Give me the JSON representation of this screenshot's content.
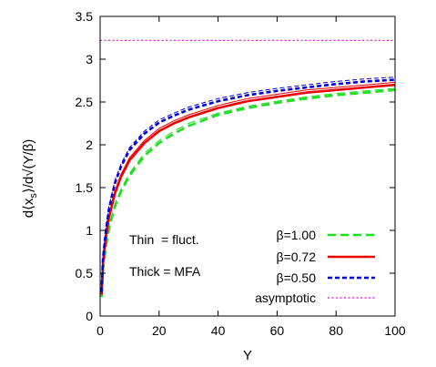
{
  "chart_data": {
    "type": "line",
    "xlabel": "Y",
    "ylabel": "d⟨x_s⟩/d√(Y/β)",
    "xlim": [
      0,
      100
    ],
    "ylim": [
      0,
      3.5
    ],
    "x_ticks": [
      0,
      20,
      40,
      60,
      80,
      100
    ],
    "y_ticks": [
      0,
      0.5,
      1,
      1.5,
      2,
      2.5,
      3,
      3.5
    ],
    "x_tick_labels": [
      "0",
      "20",
      "40",
      "60",
      "80",
      "100"
    ],
    "y_tick_labels": [
      "0",
      "0.5",
      "1",
      "1.5",
      "2",
      "2.5",
      "3",
      "3.5"
    ],
    "grid": false,
    "legend_position": "bottom-right",
    "annotations": [
      "Thin  = fluct.",
      "Thick = MFA"
    ],
    "series": [
      {
        "name": "β=1.00",
        "color": "#22dd22",
        "style": "dashed",
        "thick": {
          "x": [
            0.5,
            1,
            2,
            3,
            5,
            7,
            10,
            15,
            20,
            25,
            30,
            40,
            50,
            60,
            70,
            80,
            90,
            100
          ],
          "y": [
            0.22,
            0.55,
            0.82,
            1.02,
            1.28,
            1.45,
            1.64,
            1.87,
            2.02,
            2.13,
            2.22,
            2.35,
            2.43,
            2.49,
            2.54,
            2.58,
            2.61,
            2.64
          ]
        },
        "thin": {
          "x": [
            0.5,
            1,
            2,
            3,
            5,
            7,
            10,
            15,
            20,
            25,
            30,
            40,
            50,
            60,
            70,
            80,
            90,
            100
          ],
          "y": [
            0.24,
            0.58,
            0.85,
            1.05,
            1.31,
            1.48,
            1.67,
            1.9,
            2.05,
            2.16,
            2.25,
            2.37,
            2.45,
            2.51,
            2.56,
            2.6,
            2.63,
            2.66
          ]
        }
      },
      {
        "name": "β=0.72",
        "color": "#ee0000",
        "style": "solid",
        "thick": {
          "x": [
            0.5,
            1,
            2,
            3,
            5,
            7,
            10,
            15,
            20,
            25,
            30,
            40,
            50,
            60,
            70,
            80,
            90,
            100
          ],
          "y": [
            0.25,
            0.62,
            0.93,
            1.15,
            1.43,
            1.62,
            1.82,
            2.02,
            2.16,
            2.25,
            2.32,
            2.43,
            2.51,
            2.56,
            2.61,
            2.64,
            2.67,
            2.7
          ]
        },
        "thin": {
          "x": [
            0.5,
            1,
            2,
            3,
            5,
            7,
            10,
            15,
            20,
            25,
            30,
            40,
            50,
            60,
            70,
            80,
            90,
            100
          ],
          "y": [
            0.27,
            0.65,
            0.96,
            1.18,
            1.46,
            1.65,
            1.85,
            2.05,
            2.19,
            2.28,
            2.35,
            2.46,
            2.54,
            2.59,
            2.64,
            2.67,
            2.7,
            2.73
          ]
        }
      },
      {
        "name": "β=0.50",
        "color": "#0000dd",
        "style": "dashed",
        "thick": {
          "x": [
            0.5,
            1,
            2,
            3,
            5,
            7,
            10,
            15,
            20,
            25,
            30,
            40,
            50,
            60,
            70,
            80,
            90,
            100
          ],
          "y": [
            0.28,
            0.68,
            1.01,
            1.25,
            1.55,
            1.74,
            1.94,
            2.13,
            2.26,
            2.34,
            2.41,
            2.51,
            2.58,
            2.63,
            2.67,
            2.71,
            2.74,
            2.76
          ]
        },
        "thin": {
          "x": [
            0.5,
            1,
            2,
            3,
            5,
            7,
            10,
            15,
            20,
            25,
            30,
            40,
            50,
            60,
            70,
            80,
            90,
            100
          ],
          "y": [
            0.3,
            0.71,
            1.04,
            1.28,
            1.58,
            1.77,
            1.97,
            2.16,
            2.29,
            2.37,
            2.44,
            2.54,
            2.61,
            2.66,
            2.7,
            2.74,
            2.77,
            2.79
          ]
        }
      },
      {
        "name": "asymptotic",
        "color": "#ee00ee",
        "style": "dotted",
        "x": [
          0,
          100
        ],
        "y": [
          3.22,
          3.22
        ]
      }
    ]
  }
}
